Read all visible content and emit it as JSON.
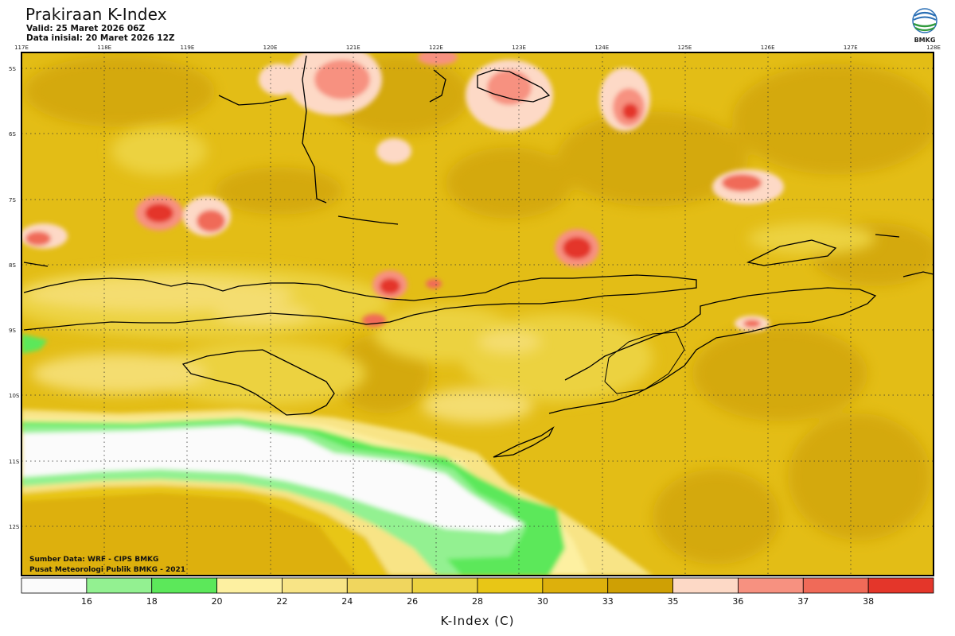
{
  "header": {
    "title": "Prakiraan K-Index",
    "valid": "Valid: 25 Maret 2026 06Z",
    "initial": "Data inisial: 20 Maret 2026 12Z"
  },
  "logo": {
    "text": "BMKG",
    "icon": "bmkg-logo-icon"
  },
  "map": {
    "lon_labels": [
      "117E",
      "118E",
      "119E",
      "120E",
      "121E",
      "122E",
      "123E",
      "124E",
      "125E",
      "126E",
      "127E",
      "128E"
    ],
    "lat_labels": [
      "5S",
      "6S",
      "7S",
      "8S",
      "9S",
      "10S",
      "11S",
      "12S"
    ],
    "lon_range": [
      117,
      128
    ],
    "lat_range": [
      -4.8,
      -12.8
    ]
  },
  "credits": {
    "source": "Sumber Data: WRF - CIPS BMKG",
    "center": "Pusat Meteorologi Publik BMKG - 2021"
  },
  "legend": {
    "title": "K-Index (C)",
    "ticks": [
      "16",
      "18",
      "20",
      "22",
      "24",
      "26",
      "28",
      "30",
      "33",
      "35",
      "36",
      "37",
      "38"
    ],
    "colors": [
      "#fbfbfb",
      "#93f191",
      "#5ce85a",
      "#fdf0a1",
      "#f8e486",
      "#f0d65e",
      "#ecd240",
      "#e8c616",
      "#ddb00c",
      "#cfa004",
      "#fdd9c6",
      "#f79180",
      "#f06a58",
      "#e4362a"
    ]
  },
  "chart_data": {
    "type": "heatmap",
    "title": "Prakiraan K-Index",
    "colorbar_label": "K-Index (C)",
    "color_levels": [
      16,
      18,
      20,
      22,
      24,
      26,
      28,
      30,
      33,
      35,
      36,
      37,
      38
    ],
    "x_range": [
      117,
      128
    ],
    "y_range": [
      -4.8,
      -12.8
    ]
  }
}
